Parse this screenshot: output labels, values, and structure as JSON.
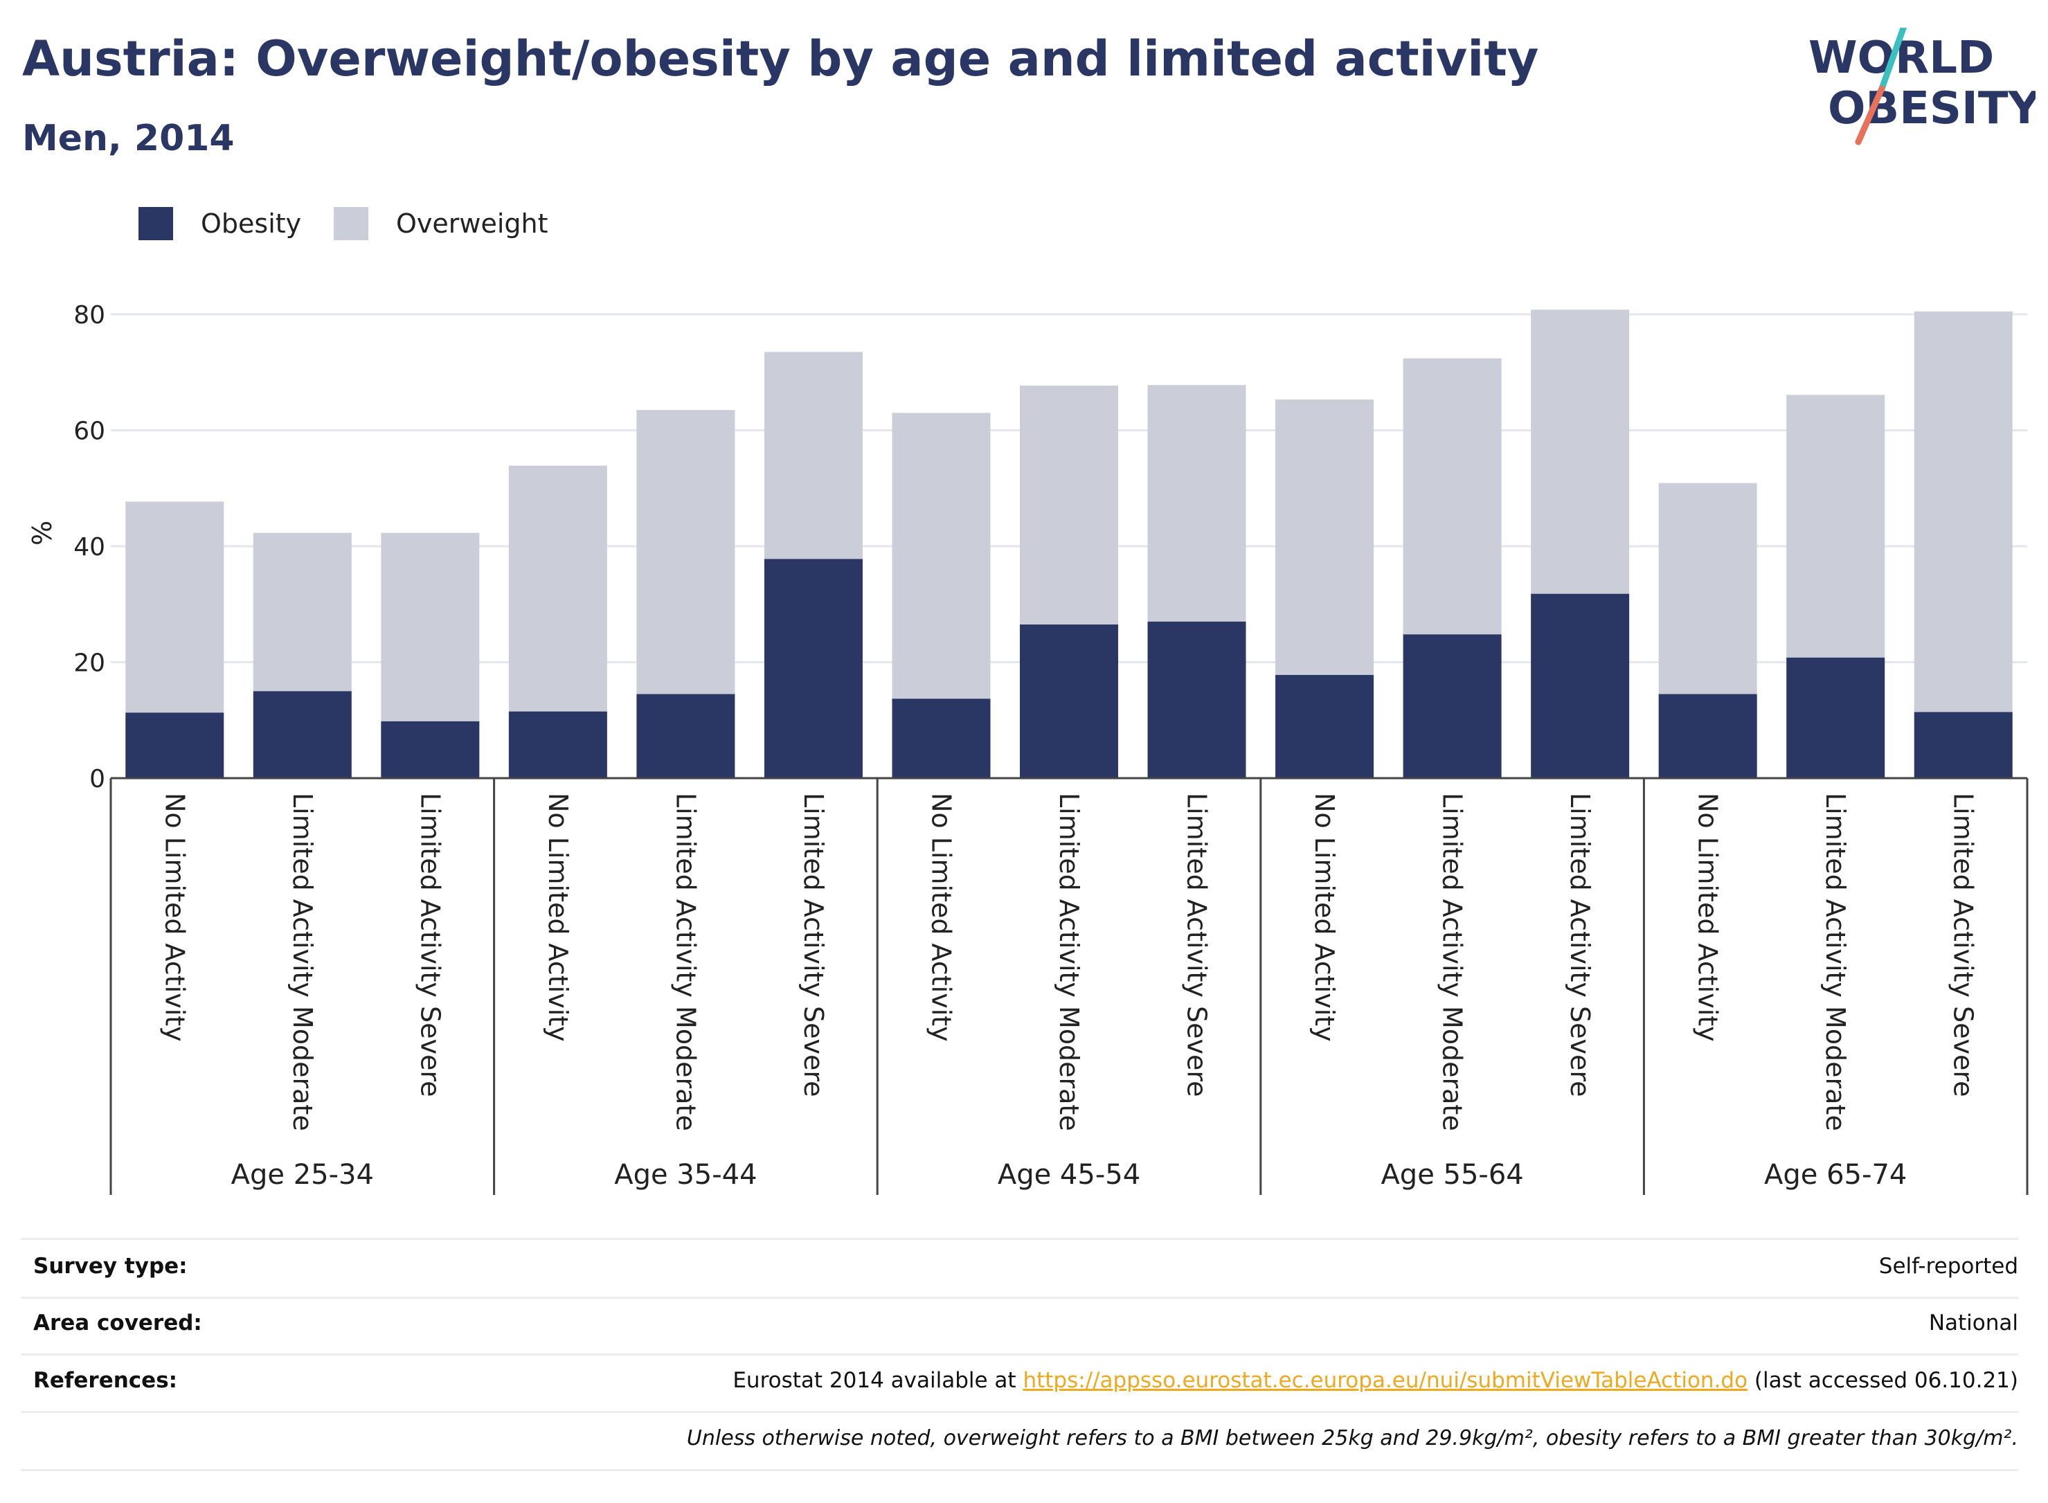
{
  "header": {
    "title": "Austria: Overweight/obesity by age and limited activity",
    "subtitle": "Men, 2014",
    "logo_text_line1": "WORLD",
    "logo_text_line2": "OBESITY"
  },
  "colors": {
    "obesity": "#2a3663",
    "overweight": "#cbcdd9",
    "grid": "#e6e6ee",
    "logo_teal": "#3bbfbf",
    "logo_coral": "#e8715c",
    "link": "#f0a81e"
  },
  "chart_data": {
    "type": "bar",
    "stacked": true,
    "ylabel": "%",
    "ylim": [
      0,
      80
    ],
    "yticks": [
      0,
      20,
      40,
      60,
      80
    ],
    "grid": true,
    "legend_position": "top-left",
    "groups": [
      "Age 25-34",
      "Age 35-44",
      "Age 45-54",
      "Age 55-64",
      "Age 65-74"
    ],
    "subcategories": [
      "No Limited Activity",
      "Limited Activity Moderate",
      "Limited Activity Severe"
    ],
    "series": [
      {
        "name": "Obesity",
        "values": [
          11.3,
          15.0,
          9.8,
          11.5,
          14.5,
          37.8,
          13.7,
          26.5,
          27.0,
          17.8,
          24.8,
          31.8,
          14.5,
          20.8,
          11.4
        ]
      },
      {
        "name": "Overweight",
        "values": [
          36.4,
          27.3,
          32.5,
          42.4,
          49.0,
          35.7,
          49.3,
          41.2,
          40.8,
          47.5,
          47.6,
          49.0,
          36.4,
          45.3,
          69.1
        ]
      }
    ]
  },
  "meta": {
    "survey_type_label": "Survey type:",
    "survey_type_value": "Self-reported",
    "area_label": "Area covered:",
    "area_value": "National",
    "references_label": "References:",
    "references_prefix": "Eurostat 2014 available at ",
    "references_link": "https://appsso.eurostat.ec.europa.eu/nui/submitViewTableAction.do",
    "references_suffix": " (last accessed 06.10.21)",
    "note": "Unless otherwise noted, overweight refers to a BMI between 25kg and 29.9kg/m², obesity refers to a BMI greater than 30kg/m²."
  }
}
